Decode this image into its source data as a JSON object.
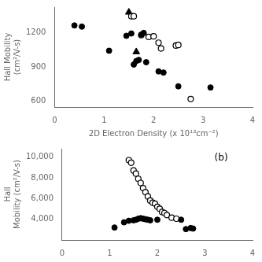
{
  "chart_data": [
    {
      "type": "scatter",
      "xlabel": "2D Electron Density (x 10¹³cm⁻²)",
      "ylabel": "Hall Mobility\n(cm²/V-s)",
      "xlim": [
        0,
        4
      ],
      "ylim": [
        550,
        1420
      ],
      "xticks": [
        0,
        1,
        2,
        3,
        4
      ],
      "yticks": [
        600,
        900,
        1200
      ],
      "grid": false,
      "series": [
        {
          "color": "#000000",
          "marker": "circle",
          "x": [
            0.4,
            0.55,
            1.1,
            1.45,
            1.55,
            1.6,
            1.65,
            1.7,
            1.75,
            1.8,
            1.85,
            2.1,
            2.2,
            2.5,
            3.15
          ],
          "values": [
            1260,
            1250,
            1040,
            1170,
            1190,
            920,
            950,
            960,
            1180,
            1195,
            940,
            860,
            850,
            730,
            720
          ]
        },
        {
          "color": "#000000",
          "marker": "open circle",
          "x": [
            1.55,
            1.6,
            1.75,
            1.9,
            2.0,
            2.1,
            2.15,
            2.45,
            2.5,
            2.75
          ],
          "values": [
            1340,
            1340,
            1175,
            1160,
            1165,
            1110,
            1060,
            1085,
            1090,
            620
          ]
        },
        {
          "color": "#000000",
          "marker": "triangle",
          "x": [
            1.5,
            1.65
          ],
          "values": [
            1375,
            1030
          ]
        }
      ]
    },
    {
      "type": "scatter",
      "ylabel": "Hall\nMobility (cm²/V-s)",
      "annotation": "(b)",
      "xlim": [
        0,
        4
      ],
      "ylim": [
        2000,
        10800
      ],
      "xticks": [
        0,
        1,
        2,
        3,
        4
      ],
      "yticks": [
        {
          "value": 4000,
          "label": "4,000"
        },
        {
          "value": 6000,
          "label": "6,000"
        },
        {
          "value": 8000,
          "label": "8,000"
        },
        {
          "value": 10000,
          "label": "10,000"
        }
      ],
      "grid": false,
      "series": [
        {
          "color": "#000000",
          "marker": "circle",
          "x": [
            1.1,
            1.3,
            1.4,
            1.5,
            1.55,
            1.6,
            1.65,
            1.7,
            1.75,
            1.8,
            1.85,
            2.0,
            2.5,
            2.6,
            2.7,
            2.75
          ],
          "values": [
            3200,
            3700,
            3850,
            3900,
            3950,
            4050,
            4100,
            4050,
            4000,
            3950,
            3900,
            3950,
            3950,
            3050,
            3150,
            3100
          ]
        },
        {
          "color": "#000000",
          "marker": "open circle",
          "x": [
            1.4,
            1.45,
            1.5,
            1.55,
            1.6,
            1.65,
            1.7,
            1.75,
            1.8,
            1.85,
            1.9,
            1.95,
            2.0,
            2.05,
            2.1,
            2.15,
            2.2,
            2.3,
            2.4
          ],
          "values": [
            9700,
            9450,
            8700,
            8400,
            7900,
            7500,
            7000,
            6600,
            6200,
            5800,
            5600,
            5500,
            5200,
            5000,
            4700,
            4600,
            4400,
            4150,
            4050
          ]
        }
      ]
    }
  ]
}
